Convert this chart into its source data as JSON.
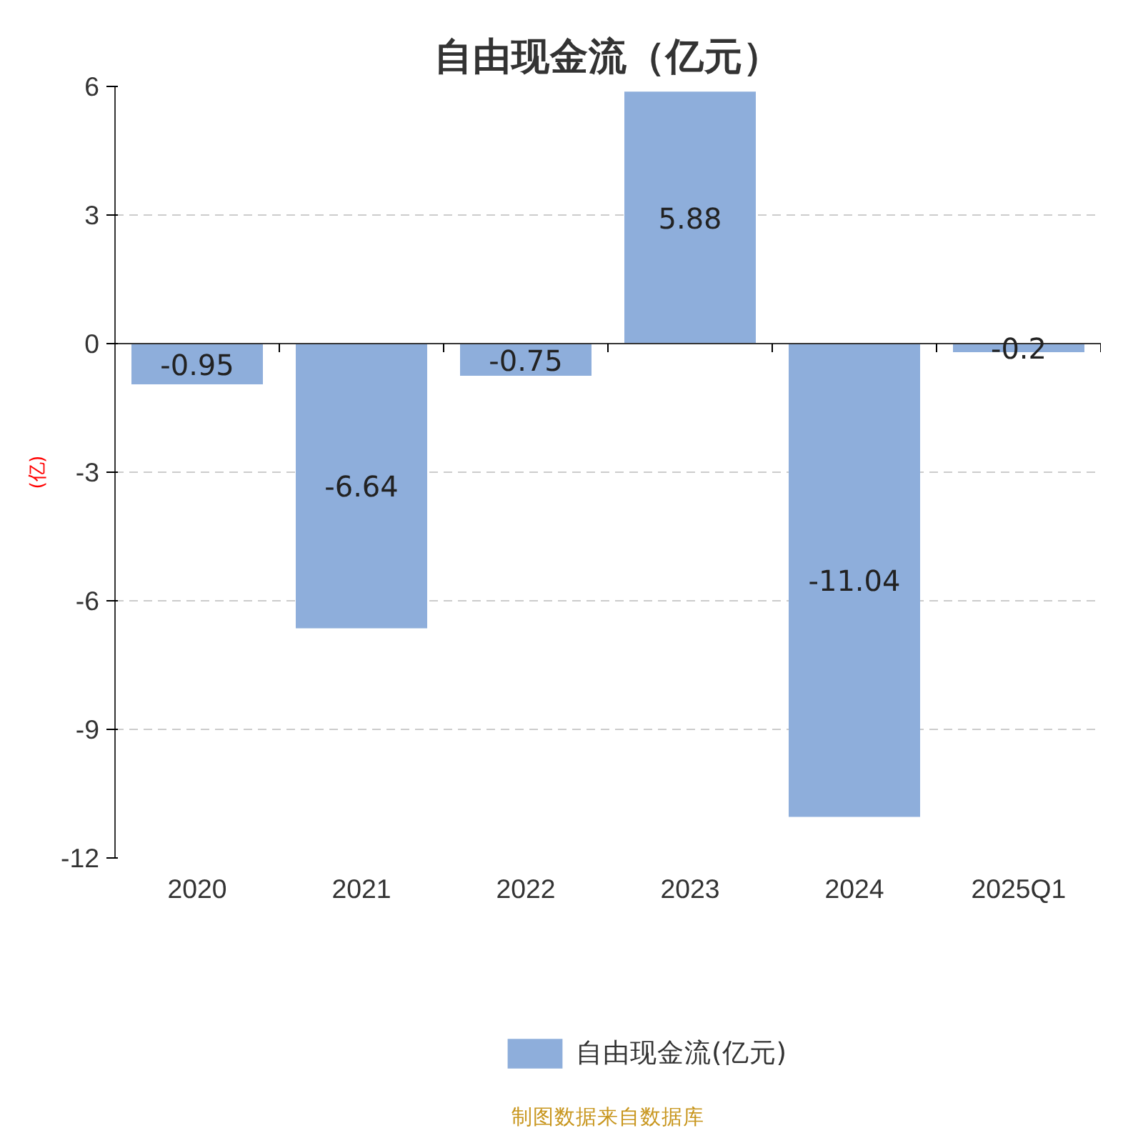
{
  "chart_data": {
    "type": "bar",
    "title": "自由现金流（亿元）",
    "ylabel": "(亿)",
    "categories": [
      "2020",
      "2021",
      "2022",
      "2023",
      "2024",
      "2025Q1"
    ],
    "series": [
      {
        "name": "自由现金流(亿元)",
        "color": "#8eaedb",
        "values": [
          -0.95,
          -6.64,
          -0.75,
          5.88,
          -11.04,
          -0.2
        ]
      }
    ],
    "ylim": [
      -12,
      6
    ],
    "yticks": [
      -12,
      -9,
      -6,
      -3,
      0,
      3,
      6
    ],
    "grid": "y",
    "legend": "bottom",
    "data_labels": true,
    "annotations": [
      "制图数据来自数据库"
    ]
  }
}
